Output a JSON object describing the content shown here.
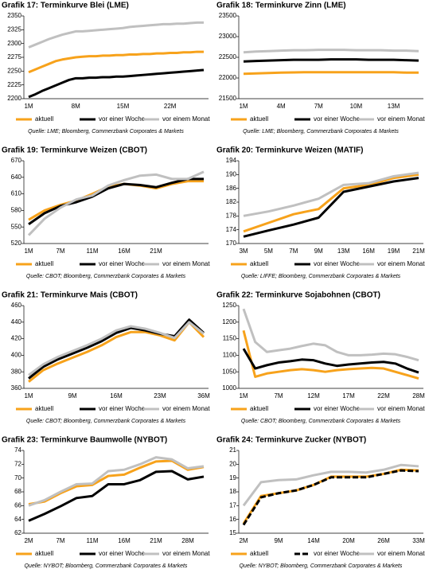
{
  "chart_data": [
    {
      "type": "line",
      "title": "Grafik 17: Terminkurve Blei (LME)",
      "categories": [
        "1M",
        null,
        null,
        null,
        null,
        null,
        null,
        "8M",
        null,
        null,
        null,
        null,
        null,
        null,
        "15M",
        null,
        null,
        null,
        null,
        null,
        null,
        "22M",
        null,
        null,
        null,
        null,
        null
      ],
      "series": [
        {
          "name": "aktuell",
          "color": "#f7a21b",
          "values": [
            2248,
            2253,
            2258,
            2263,
            2268,
            2271,
            2273,
            2275,
            2276,
            2277,
            2277,
            2278,
            2278,
            2279,
            2279,
            2280,
            2280,
            2281,
            2281,
            2282,
            2282,
            2283,
            2283,
            2284,
            2284,
            2285,
            2285
          ]
        },
        {
          "name": "vor einer Woche",
          "color": "#000000",
          "values": [
            2203,
            2208,
            2214,
            2219,
            2224,
            2229,
            2234,
            2237,
            2237,
            2238,
            2238,
            2239,
            2239,
            2240,
            2240,
            2241,
            2242,
            2243,
            2244,
            2245,
            2246,
            2247,
            2248,
            2249,
            2250,
            2251,
            2252
          ]
        },
        {
          "name": "vor einem Monat",
          "color": "#c0c0c0",
          "values": [
            2293,
            2298,
            2303,
            2308,
            2312,
            2316,
            2319,
            2322,
            2322,
            2323,
            2324,
            2325,
            2326,
            2327,
            2328,
            2330,
            2331,
            2332,
            2333,
            2334,
            2335,
            2335,
            2336,
            2336,
            2337,
            2338,
            2338
          ]
        }
      ],
      "ylim": [
        2200,
        2350
      ],
      "yticks": [
        2200,
        2225,
        2250,
        2275,
        2300,
        2325,
        2350
      ],
      "source": "Quelle: LME; Bloomberg, Commerzbank Corporates & Markets"
    },
    {
      "type": "line",
      "title": "Grafik 18: Terminkurve Zinn (LME)",
      "categories": [
        "1M",
        null,
        null,
        "4M",
        null,
        null,
        "7M",
        null,
        null,
        "10M",
        null,
        null,
        "13M",
        null,
        null
      ],
      "series": [
        {
          "name": "aktuell",
          "color": "#f7a21b",
          "values": [
            22100,
            22110,
            22120,
            22130,
            22135,
            22140,
            22140,
            22140,
            22140,
            22140,
            22140,
            22140,
            22140,
            22130,
            22130
          ]
        },
        {
          "name": "vor einer Woche",
          "color": "#000000",
          "values": [
            22400,
            22410,
            22420,
            22430,
            22440,
            22440,
            22440,
            22450,
            22450,
            22450,
            22440,
            22440,
            22440,
            22430,
            22420
          ]
        },
        {
          "name": "vor einem Monat",
          "color": "#c0c0c0",
          "values": [
            22620,
            22640,
            22650,
            22660,
            22670,
            22670,
            22680,
            22680,
            22680,
            22670,
            22670,
            22670,
            22660,
            22660,
            22650
          ]
        }
      ],
      "ylim": [
        21500,
        23500
      ],
      "yticks": [
        21500,
        22000,
        22500,
        23000,
        23500
      ],
      "source": "Quelle: LME; Bloomberg, Commerzbank Corporates & Markets"
    },
    {
      "type": "line",
      "title": "Grafik 19: Terminkurve Weizen (CBOT)",
      "categories": [
        "1M",
        null,
        "7M",
        null,
        "11M",
        null,
        "16M",
        null,
        "21M",
        null,
        null,
        null
      ],
      "series": [
        {
          "name": "aktuell",
          "color": "#f7a21b",
          "values": [
            563,
            580,
            590,
            598,
            610,
            623,
            628,
            625,
            620,
            628,
            633,
            633
          ]
        },
        {
          "name": "vor einer Woche",
          "color": "#000000",
          "values": [
            555,
            575,
            588,
            595,
            605,
            620,
            628,
            626,
            622,
            630,
            637,
            637
          ]
        },
        {
          "name": "vor einem Monat",
          "color": "#c0c0c0",
          "values": [
            535,
            565,
            585,
            600,
            607,
            625,
            635,
            643,
            645,
            637,
            637,
            650
          ]
        }
      ],
      "ylim": [
        520,
        670
      ],
      "yticks": [
        520,
        550,
        580,
        610,
        640,
        670
      ],
      "source": "Quelle: CBOT; Bloomberg, Commerzbank Corporates & Markets"
    },
    {
      "type": "line",
      "title": "Grafik 20: Terminkurve Weizen (MATIF)",
      "categories": [
        "3M",
        "5M",
        "7M",
        "9M",
        "13M",
        "16M",
        "19M",
        "21M"
      ],
      "series": [
        {
          "name": "aktuell",
          "color": "#f7a21b",
          "values": [
            173.5,
            176,
            178.5,
            180,
            186,
            187,
            189,
            190
          ]
        },
        {
          "name": "vor einer Woche",
          "color": "#000000",
          "values": [
            172,
            173.8,
            175.5,
            177.5,
            185,
            186.5,
            188,
            189
          ]
        },
        {
          "name": "vor einem Monat",
          "color": "#c0c0c0",
          "values": [
            178,
            179.3,
            181,
            183,
            187,
            187.5,
            189.5,
            190.5
          ]
        }
      ],
      "ylim": [
        170,
        194
      ],
      "yticks": [
        170,
        174,
        178,
        182,
        186,
        190,
        194
      ],
      "source": "Quelle: LIFFE; Bloomberg, Commerzbank Corporates & Markets"
    },
    {
      "type": "line",
      "title": "Grafik 21: Terminkurve Mais (CBOT)",
      "categories": [
        "1M",
        null,
        null,
        "9M",
        null,
        null,
        "16M",
        null,
        null,
        "23M",
        null,
        null,
        "36M"
      ],
      "series": [
        {
          "name": "aktuell",
          "color": "#f7a21b",
          "values": [
            368,
            382,
            390,
            397,
            404,
            412,
            422,
            428,
            428,
            424,
            418,
            440,
            422
          ]
        },
        {
          "name": "vor einer Woche",
          "color": "#000000",
          "values": [
            372,
            386,
            395,
            402,
            409,
            417,
            427,
            433,
            430,
            426,
            423,
            443,
            427
          ]
        },
        {
          "name": "vor einem Monat",
          "color": "#c0c0c0",
          "values": [
            376,
            389,
            398,
            405,
            412,
            420,
            430,
            435,
            432,
            427,
            421,
            440,
            426
          ]
        }
      ],
      "ylim": [
        360,
        460
      ],
      "yticks": [
        360,
        380,
        400,
        420,
        440,
        460
      ],
      "source": "Quelle: CBOT; Bloomberg, Commerzbank Corporates & Markets"
    },
    {
      "type": "line",
      "title": "Grafik 22: Terminkurve Sojabohnen (CBOT)",
      "categories": [
        "1M",
        null,
        null,
        "7M",
        null,
        null,
        "12M",
        null,
        null,
        "17M",
        null,
        null,
        "22M",
        null,
        null,
        "28M"
      ],
      "series": [
        {
          "name": "aktuell",
          "color": "#f7a21b",
          "values": [
            1175,
            1035,
            1045,
            1050,
            1055,
            1058,
            1055,
            1050,
            1055,
            1058,
            1060,
            1062,
            1060,
            1050,
            1040,
            1030
          ]
        },
        {
          "name": "vor einer Woche",
          "color": "#000000",
          "values": [
            1120,
            1060,
            1070,
            1078,
            1082,
            1087,
            1085,
            1075,
            1068,
            1072,
            1075,
            1078,
            1080,
            1075,
            1060,
            1048
          ]
        },
        {
          "name": "vor einem Monat",
          "color": "#c0c0c0",
          "values": [
            1240,
            1140,
            1110,
            1115,
            1120,
            1128,
            1135,
            1130,
            1110,
            1100,
            1100,
            1102,
            1105,
            1103,
            1095,
            1085
          ]
        }
      ],
      "ylim": [
        1000,
        1250
      ],
      "yticks": [
        1000,
        1050,
        1100,
        1150,
        1200,
        1250
      ],
      "source": "Quelle: CBOT; Bloomberg, Commerzbank Corporates & Markets"
    },
    {
      "type": "line",
      "title": "Grafik 23: Terminkurve Baumwolle (NYBOT)",
      "categories": [
        "2M",
        null,
        "7M",
        null,
        "11M",
        null,
        "16M",
        null,
        "21M",
        null,
        "28M",
        null
      ],
      "series": [
        {
          "name": "aktuell",
          "color": "#f7a21b",
          "values": [
            66.2,
            66.6,
            67.8,
            68.8,
            69,
            70.3,
            70.5,
            71.5,
            72.4,
            72.5,
            71.2,
            71.6
          ]
        },
        {
          "name": "vor einer Woche",
          "color": "#000000",
          "values": [
            63.8,
            64.8,
            65.9,
            67.1,
            67.4,
            69.1,
            69.1,
            69.7,
            70.9,
            71,
            69.8,
            70.2
          ]
        },
        {
          "name": "vor einem Monat",
          "color": "#c0c0c0",
          "values": [
            66,
            66.8,
            68,
            69.1,
            69.2,
            71,
            71.2,
            72,
            73,
            72.7,
            71.4,
            71.7
          ]
        }
      ],
      "ylim": [
        62,
        74
      ],
      "yticks": [
        62,
        64,
        66,
        68,
        70,
        72,
        74
      ],
      "source": "Quelle: NYBOT; Bloomberg, Commerzbank Corporates & Markets"
    },
    {
      "type": "line",
      "title": "Grafik 24: Terminkurve Zucker (NYBOT)",
      "categories": [
        "2M",
        null,
        "9M",
        null,
        "14M",
        null,
        "20M",
        null,
        "26M",
        null,
        "33M"
      ],
      "series": [
        {
          "name": "aktuell",
          "color": "#f7a21b",
          "values": [
            15.7,
            17.7,
            17.9,
            18.1,
            18.5,
            19.1,
            19.1,
            19.1,
            19.3,
            19.6,
            19.55
          ]
        },
        {
          "name": "vor einer Woche",
          "color": "#000000",
          "dash": true,
          "values": [
            15.6,
            17.6,
            17.9,
            18.1,
            18.5,
            19.05,
            19.05,
            19.05,
            19.3,
            19.55,
            19.5
          ]
        },
        {
          "name": "vor einem Monat",
          "color": "#c0c0c0",
          "values": [
            17,
            18.7,
            18.85,
            18.9,
            19.2,
            19.45,
            19.45,
            19.4,
            19.6,
            19.95,
            19.85
          ]
        }
      ],
      "ylim": [
        15,
        21
      ],
      "yticks": [
        15,
        16,
        17,
        18,
        19,
        20,
        21
      ],
      "source": "Quelle: NYBOT; Bloomberg, Commerzbank Corporates & Markets"
    }
  ]
}
